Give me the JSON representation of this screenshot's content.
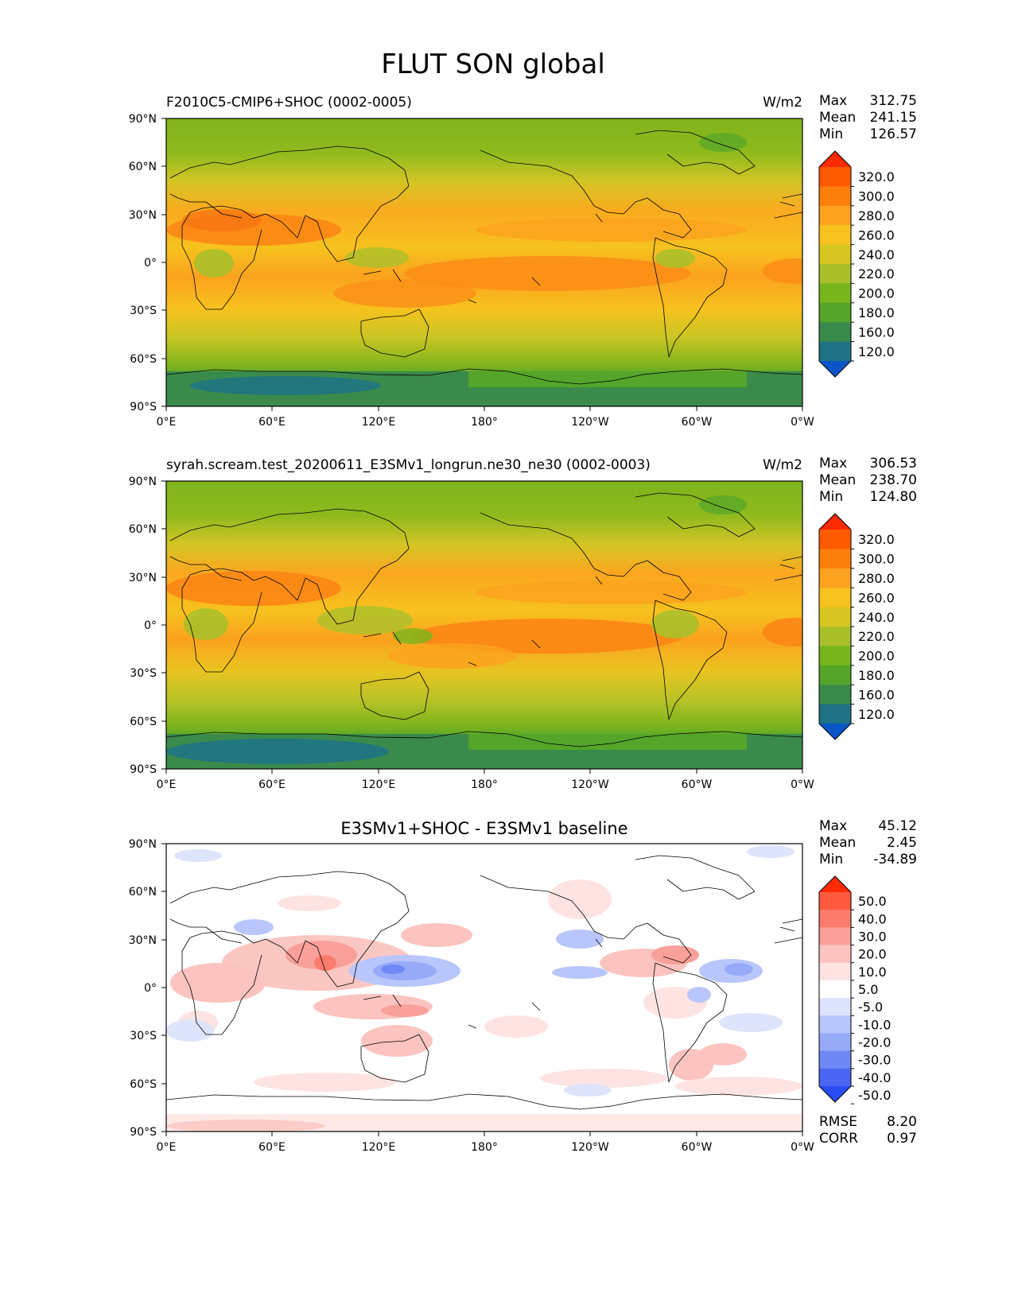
{
  "title": "FLUT SON global",
  "lon_ticks": [
    "0°E",
    "60°E",
    "120°E",
    "180°",
    "120°W",
    "60°W",
    "0°W"
  ],
  "lat_ticks": [
    "90°N",
    "60°N",
    "30°N",
    "0°",
    "30°S",
    "60°S",
    "90°S"
  ],
  "stat_labels": {
    "max": "Max",
    "mean": "Mean",
    "min": "Min",
    "rmse": "RMSE",
    "corr": "CORR"
  },
  "panels": [
    {
      "title": "F2010C5-CMIP6+SHOC (0002-0005)",
      "units": "W/m2",
      "stats": {
        "max": "312.75",
        "mean": "241.15",
        "min": "126.57"
      },
      "colorbar": {
        "labels": [
          "320.0",
          "300.0",
          "280.0",
          "260.0",
          "240.0",
          "220.0",
          "200.0",
          "180.0",
          "160.0",
          "120.0"
        ],
        "colors": [
          "#ff2a00",
          "#ff5a00",
          "#fd7f0c",
          "#fba21e",
          "#f7c21e",
          "#d8c623",
          "#aac02a",
          "#78b51c",
          "#54a52a",
          "#3a8a4c",
          "#1f7385",
          "#0a55c8"
        ]
      }
    },
    {
      "title": "syrah.scream.test_20200611_E3SMv1_longrun.ne30_ne30 (0002-0003)",
      "units": "W/m2",
      "stats": {
        "max": "306.53",
        "mean": "238.70",
        "min": "124.80"
      },
      "colorbar": {
        "labels": [
          "320.0",
          "300.0",
          "280.0",
          "260.0",
          "240.0",
          "220.0",
          "200.0",
          "180.0",
          "160.0",
          "120.0"
        ],
        "colors": [
          "#ff2a00",
          "#ff5a00",
          "#fd7f0c",
          "#fba21e",
          "#f7c21e",
          "#d8c623",
          "#aac02a",
          "#78b51c",
          "#54a52a",
          "#3a8a4c",
          "#1f7385",
          "#0a55c8"
        ]
      }
    },
    {
      "title": "E3SMv1+SHOC - E3SMv1 baseline",
      "units": "",
      "stats": {
        "max": "45.12",
        "mean": "2.45",
        "min": "-34.89"
      },
      "extra": {
        "rmse": "8.20",
        "corr": "0.97"
      },
      "colorbar": {
        "labels": [
          "50.0",
          "40.0",
          "30.0",
          "20.0",
          "10.0",
          "5.0",
          "-5.0",
          "-10.0",
          "-20.0",
          "-30.0",
          "-40.0",
          "-50.0"
        ],
        "colors": [
          "#ff2a00",
          "#ff5a40",
          "#fb7c6c",
          "#f9a09a",
          "#fbc4c0",
          "#fde4e2",
          "#ffffff",
          "#dde4fb",
          "#b9c6fb",
          "#97aaf8",
          "#6f88f4",
          "#4a66f2",
          "#2a4cf5"
        ]
      }
    }
  ]
}
